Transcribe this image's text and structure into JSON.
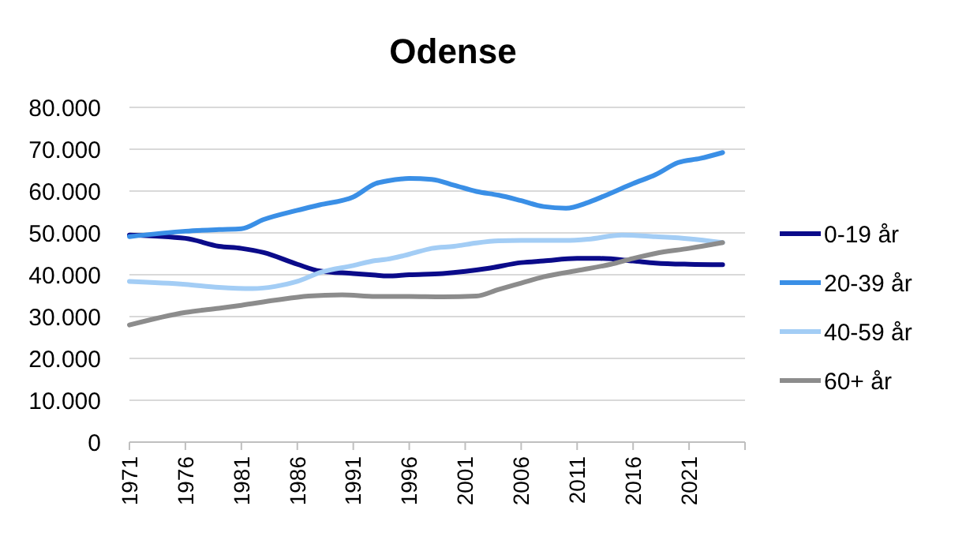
{
  "chart_data": {
    "type": "line",
    "title": "Odense",
    "xlim": [
      1971,
      2026
    ],
    "xticks": [
      1971,
      1976,
      1981,
      1986,
      1991,
      1996,
      2001,
      2006,
      2011,
      2016,
      2021
    ],
    "ylim": [
      0,
      80000
    ],
    "yticks": [
      {
        "value": 0,
        "label": "0"
      },
      {
        "value": 10000,
        "label": "10.000"
      },
      {
        "value": 20000,
        "label": "20.000"
      },
      {
        "value": 30000,
        "label": "30.000"
      },
      {
        "value": 40000,
        "label": "40.000"
      },
      {
        "value": 50000,
        "label": "50.000"
      },
      {
        "value": 60000,
        "label": "60.000"
      },
      {
        "value": 70000,
        "label": "70.000"
      },
      {
        "value": 80000,
        "label": "80.000"
      }
    ],
    "grid": "y",
    "legend": "right",
    "marker": "none",
    "line_style": "solid",
    "series": [
      {
        "name": "0-19 år",
        "color": "#0b0b8a",
        "x": [
          1971,
          1976,
          1979,
          1981,
          1983,
          1986,
          1988,
          1991,
          1993,
          1994,
          1996,
          1999,
          2001,
          2003,
          2006,
          2008,
          2011,
          2013,
          2016,
          2018,
          2021,
          2024
        ],
        "values": [
          49500,
          48700,
          46800,
          46300,
          45300,
          42500,
          40900,
          40300,
          39900,
          39700,
          40000,
          40300,
          40800,
          41500,
          42900,
          43300,
          43900,
          43900,
          43300,
          42800,
          42500,
          42400
        ]
      },
      {
        "name": "20-39 år",
        "color": "#3a8fe6",
        "x": [
          1971,
          1976,
          1979,
          1981,
          1983,
          1986,
          1988,
          1991,
          1993,
          1994,
          1996,
          1998,
          2000,
          2002,
          2004,
          2006,
          2008,
          2010,
          2012,
          2014,
          2016,
          2018,
          2020,
          2022,
          2024
        ],
        "values": [
          49100,
          50400,
          50800,
          51000,
          53200,
          55400,
          56700,
          58600,
          61800,
          62400,
          63000,
          62800,
          61400,
          59900,
          59000,
          57700,
          56300,
          55900,
          57300,
          59500,
          61800,
          63900,
          66800,
          67800,
          69200
        ]
      },
      {
        "name": "40-59 år",
        "color": "#a3cdf5",
        "x": [
          1971,
          1976,
          1979,
          1982,
          1984,
          1986,
          1988,
          1991,
          1993,
          1994,
          1996,
          1998,
          2000,
          2002,
          2004,
          2006,
          2010,
          2012,
          2015,
          2018,
          2021,
          2024
        ],
        "values": [
          38400,
          37700,
          37000,
          36700,
          37200,
          38400,
          40500,
          42200,
          43400,
          43700,
          44900,
          46300,
          46800,
          47600,
          48100,
          48200,
          48200,
          48500,
          49500,
          49100,
          48600,
          47700
        ]
      },
      {
        "name": "60+ år",
        "color": "#8c8c8c",
        "x": [
          1971,
          1976,
          1979,
          1981,
          1984,
          1987,
          1990,
          1993,
          1996,
          1999,
          2002,
          2004,
          2006,
          2008,
          2011,
          2014,
          2016,
          2018,
          2021,
          2024
        ],
        "values": [
          28000,
          31000,
          32000,
          32700,
          33900,
          34900,
          35200,
          34800,
          34800,
          34700,
          34900,
          36500,
          38000,
          39500,
          41000,
          42500,
          43900,
          45100,
          46300,
          47700
        ]
      }
    ]
  }
}
